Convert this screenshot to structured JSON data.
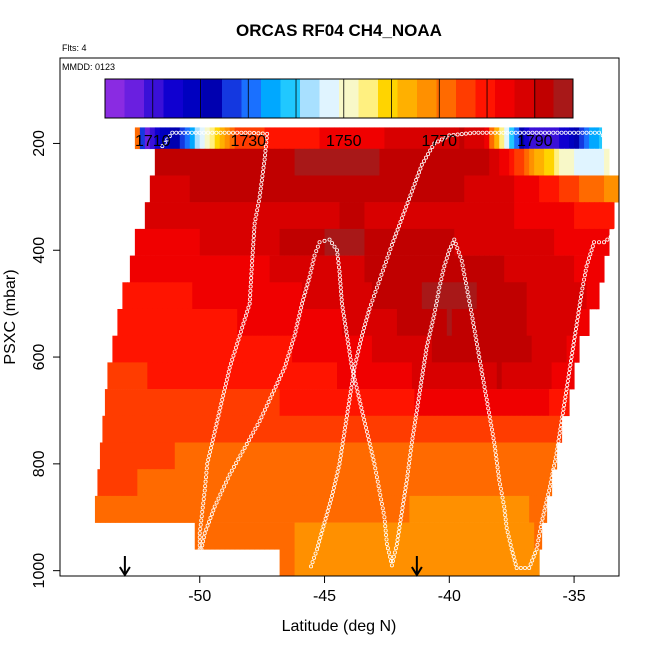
{
  "chart_data": {
    "type": "heatmap",
    "title": "ORCAS RF04 CH4_NOAA",
    "flts_label": "Flts: 4",
    "date_label": "MMDD: 0123",
    "xlabel": "Latitude (deg N)",
    "ylabel": "PSXC (mbar)",
    "xlim": [
      -55.6,
      -33.2
    ],
    "ylim": [
      1010,
      40
    ],
    "x_ticks": [
      -50,
      -45,
      -40,
      -35
    ],
    "x_tick_labels": [
      "-50",
      "-45",
      "-40",
      "-35"
    ],
    "y_ticks": [
      200,
      400,
      600,
      800,
      1000
    ],
    "y_tick_labels": [
      "200",
      "400",
      "600",
      "800",
      "1000"
    ],
    "colorbar": {
      "min": 1700,
      "max": 1798,
      "ticks": [
        1710,
        1730,
        1750,
        1770,
        1790
      ],
      "tick_labels": [
        "1710",
        "1730",
        "1750",
        "1770",
        "1790"
      ],
      "colors": [
        "#8a2be2",
        "#6a1fe0",
        "#3a10d8",
        "#1000d0",
        "#0000c0",
        "#0000b0",
        "#1438e0",
        "#1a70ff",
        "#00a8ff",
        "#20c8ff",
        "#a8e0ff",
        "#e0f4ff",
        "#f8f8c8",
        "#fff080",
        "#ffd400",
        "#ffb000",
        "#ff9000",
        "#ff6a00",
        "#ff3c00",
        "#ff1400",
        "#f00000",
        "#d80000",
        "#c00000",
        "#a81818"
      ]
    },
    "bands": [
      {
        "p": [
          170,
          210
        ],
        "x": [
          -52.6,
          -33.9
        ],
        "profile": "top"
      },
      {
        "p": [
          210,
          260
        ],
        "x": [
          -51.8,
          -33.6
        ],
        "profile": "band1"
      },
      {
        "p": [
          260,
          310
        ],
        "x": [
          -52.0,
          -33.2
        ],
        "profile": "band2"
      },
      {
        "p": [
          310,
          360
        ],
        "x": [
          -52.2,
          -33.4
        ],
        "profile": "band3"
      },
      {
        "p": [
          360,
          410
        ],
        "x": [
          -52.6,
          -33.6
        ],
        "profile": "band4"
      },
      {
        "p": [
          410,
          460
        ],
        "x": [
          -52.8,
          -33.8
        ],
        "profile": "band5"
      },
      {
        "p": [
          460,
          510
        ],
        "x": [
          -53.1,
          -34.0
        ],
        "profile": "band6"
      },
      {
        "p": [
          510,
          560
        ],
        "x": [
          -53.3,
          -34.4
        ],
        "profile": "band7"
      },
      {
        "p": [
          560,
          610
        ],
        "x": [
          -53.5,
          -34.8
        ],
        "profile": "band8"
      },
      {
        "p": [
          610,
          660
        ],
        "x": [
          -53.7,
          -35.0
        ],
        "profile": "band9"
      },
      {
        "p": [
          660,
          710
        ],
        "x": [
          -53.8,
          -35.2
        ],
        "profile": "band10"
      },
      {
        "p": [
          710,
          760
        ],
        "x": [
          -53.9,
          -35.5
        ],
        "profile": "band11"
      },
      {
        "p": [
          760,
          810
        ],
        "x": [
          -54.0,
          -35.7
        ],
        "profile": "band12"
      },
      {
        "p": [
          810,
          860
        ],
        "x": [
          -54.1,
          -35.9
        ],
        "profile": "band13"
      },
      {
        "p": [
          860,
          910
        ],
        "x": [
          -54.2,
          -36.1
        ],
        "profile": "band14"
      },
      {
        "p": [
          910,
          960
        ],
        "x": [
          -50.2,
          -36.3
        ],
        "profile": "band15"
      },
      {
        "p": [
          960,
          1010
        ],
        "x": [
          -46.8,
          -36.4
        ],
        "profile": "band16"
      }
    ],
    "profiles": {
      "top": [
        [
          -52.6,
          1794
        ],
        [
          -52.2,
          1702
        ],
        [
          -51.8,
          1712
        ],
        [
          -51.3,
          1720
        ],
        [
          -50.6,
          1727
        ],
        [
          -49.9,
          1747
        ],
        [
          -49.3,
          1760
        ],
        [
          -48.5,
          1776
        ],
        [
          -47.0,
          1778
        ],
        [
          -45.5,
          1781
        ],
        [
          -44.0,
          1784
        ],
        [
          -42.5,
          1786
        ],
        [
          -41.0,
          1788
        ],
        [
          -39.5,
          1790
        ],
        [
          -38.5,
          1785
        ],
        [
          -38.2,
          1765
        ],
        [
          -37.8,
          1752
        ],
        [
          -37.4,
          1735
        ],
        [
          -36.8,
          1712
        ],
        [
          -36.0,
          1708
        ],
        [
          -35.2,
          1715
        ],
        [
          -34.5,
          1730
        ],
        [
          -33.9,
          1738
        ]
      ],
      "band1": [
        [
          -51.8,
          1791
        ],
        [
          -49.0,
          1793
        ],
        [
          -46.0,
          1794
        ],
        [
          -43.0,
          1794
        ],
        [
          -40.0,
          1792
        ],
        [
          -38.5,
          1790
        ],
        [
          -37.5,
          1780
        ],
        [
          -36.5,
          1765
        ],
        [
          -35.5,
          1752
        ],
        [
          -34.5,
          1746
        ],
        [
          -33.6,
          1750
        ]
      ],
      "band2": [
        [
          -52.0,
          1789
        ],
        [
          -48.0,
          1791
        ],
        [
          -44.0,
          1793
        ],
        [
          -40.0,
          1791
        ],
        [
          -37.0,
          1785
        ],
        [
          -35.0,
          1775
        ],
        [
          -33.2,
          1766
        ]
      ],
      "band3": [
        [
          -52.2,
          1786
        ],
        [
          -48.0,
          1788
        ],
        [
          -44.0,
          1790
        ],
        [
          -40.0,
          1789
        ],
        [
          -36.0,
          1784
        ],
        [
          -33.4,
          1778
        ]
      ],
      "band4": [
        [
          -52.6,
          1784
        ],
        [
          -48.0,
          1787
        ],
        [
          -44.5,
          1795
        ],
        [
          -42.5,
          1793
        ],
        [
          -40.0,
          1790
        ],
        [
          -36.0,
          1786
        ],
        [
          -33.6,
          1782
        ]
      ],
      "band5": [
        [
          -52.8,
          1782
        ],
        [
          -48.0,
          1785
        ],
        [
          -44.0,
          1789
        ],
        [
          -41.0,
          1793
        ],
        [
          -39.0,
          1792
        ],
        [
          -36.0,
          1787
        ],
        [
          -33.8,
          1784
        ]
      ],
      "band6": [
        [
          -53.1,
          1780
        ],
        [
          -48.0,
          1783
        ],
        [
          -44.0,
          1788
        ],
        [
          -41.0,
          1794
        ],
        [
          -39.0,
          1794
        ],
        [
          -36.0,
          1788
        ],
        [
          -34.0,
          1785
        ]
      ],
      "band7": [
        [
          -53.3,
          1779
        ],
        [
          -48.0,
          1782
        ],
        [
          -44.0,
          1786
        ],
        [
          -40.0,
          1794
        ],
        [
          -38.0,
          1792
        ],
        [
          -36.0,
          1788
        ],
        [
          -34.4,
          1785
        ]
      ],
      "band8": [
        [
          -53.5,
          1778
        ],
        [
          -48.0,
          1780
        ],
        [
          -44.0,
          1784
        ],
        [
          -40.0,
          1791
        ],
        [
          -38.0,
          1793
        ],
        [
          -36.0,
          1788
        ],
        [
          -34.8,
          1784
        ]
      ],
      "band9": [
        [
          -53.7,
          1777
        ],
        [
          -48.0,
          1779
        ],
        [
          -44.0,
          1782
        ],
        [
          -40.0,
          1788
        ],
        [
          -38.0,
          1790
        ],
        [
          -36.0,
          1786
        ],
        [
          -35.0,
          1783
        ]
      ],
      "band10": [
        [
          -53.8,
          1776
        ],
        [
          -48.0,
          1777
        ],
        [
          -44.0,
          1779
        ],
        [
          -40.0,
          1783
        ],
        [
          -37.5,
          1785
        ],
        [
          -35.2,
          1780
        ]
      ],
      "band11": [
        [
          -53.9,
          1775
        ],
        [
          -48.0,
          1775
        ],
        [
          -44.0,
          1774
        ],
        [
          -40.0,
          1775
        ],
        [
          -37.0,
          1776
        ],
        [
          -35.5,
          1776
        ]
      ],
      "band12": [
        [
          -54.0,
          1774
        ],
        [
          -48.0,
          1773
        ],
        [
          -44.0,
          1772
        ],
        [
          -40.0,
          1772
        ],
        [
          -37.0,
          1771
        ],
        [
          -35.7,
          1773
        ]
      ],
      "band13": [
        [
          -54.1,
          1774
        ],
        [
          -48.0,
          1772
        ],
        [
          -44.0,
          1771
        ],
        [
          -40.0,
          1770
        ],
        [
          -37.0,
          1770
        ],
        [
          -35.9,
          1772
        ]
      ],
      "band14": [
        [
          -54.2,
          1773
        ],
        [
          -48.0,
          1772
        ],
        [
          -44.0,
          1770
        ],
        [
          -40.0,
          1769
        ],
        [
          -37.0,
          1769
        ],
        [
          -36.1,
          1771
        ]
      ],
      "band15": [
        [
          -50.2,
          1772
        ],
        [
          -47.0,
          1770
        ],
        [
          -44.0,
          1768
        ],
        [
          -40.0,
          1768
        ],
        [
          -37.0,
          1768
        ],
        [
          -36.3,
          1770
        ]
      ],
      "band16": [
        [
          -46.8,
          1770
        ],
        [
          -44.0,
          1767
        ],
        [
          -41.0,
          1766
        ],
        [
          -38.0,
          1767
        ],
        [
          -36.4,
          1769
        ]
      ]
    },
    "flight_track": [
      [
        -51.5,
        205
      ],
      [
        -51.1,
        180
      ],
      [
        -50.0,
        180
      ],
      [
        -49.0,
        180
      ],
      [
        -48.0,
        180
      ],
      [
        -47.3,
        182
      ],
      [
        -47.4,
        230
      ],
      [
        -47.6,
        300
      ],
      [
        -47.8,
        350
      ],
      [
        -47.9,
        420
      ],
      [
        -48.0,
        500
      ],
      [
        -48.4,
        560
      ],
      [
        -48.8,
        620
      ],
      [
        -49.1,
        680
      ],
      [
        -49.4,
        740
      ],
      [
        -49.7,
        800
      ],
      [
        -49.8,
        850
      ],
      [
        -49.9,
        890
      ],
      [
        -50.0,
        930
      ],
      [
        -50.0,
        960
      ],
      [
        -50.0,
        1000
      ],
      [
        -50.0,
        975
      ],
      [
        -49.8,
        930
      ],
      [
        -49.4,
        880
      ],
      [
        -48.8,
        820
      ],
      [
        -48.2,
        770
      ],
      [
        -47.6,
        720
      ],
      [
        -47.1,
        670
      ],
      [
        -46.6,
        620
      ],
      [
        -46.2,
        560
      ],
      [
        -45.9,
        500
      ],
      [
        -45.6,
        450
      ],
      [
        -45.4,
        410
      ],
      [
        -45.2,
        385
      ],
      [
        -44.8,
        380
      ],
      [
        -44.5,
        400
      ],
      [
        -44.4,
        440
      ],
      [
        -44.3,
        500
      ],
      [
        -44.1,
        560
      ],
      [
        -43.9,
        620
      ],
      [
        -43.6,
        680
      ],
      [
        -43.3,
        740
      ],
      [
        -43.0,
        800
      ],
      [
        -42.8,
        850
      ],
      [
        -42.6,
        900
      ],
      [
        -42.5,
        950
      ],
      [
        -42.3,
        990
      ],
      [
        -42.1,
        950
      ],
      [
        -41.9,
        890
      ],
      [
        -41.7,
        830
      ],
      [
        -41.5,
        760
      ],
      [
        -41.3,
        700
      ],
      [
        -41.1,
        640
      ],
      [
        -40.9,
        580
      ],
      [
        -40.6,
        520
      ],
      [
        -40.4,
        470
      ],
      [
        -40.2,
        430
      ],
      [
        -40.0,
        400
      ],
      [
        -39.8,
        380
      ],
      [
        -39.5,
        420
      ],
      [
        -39.3,
        470
      ],
      [
        -39.1,
        520
      ],
      [
        -38.8,
        600
      ],
      [
        -38.5,
        680
      ],
      [
        -38.2,
        760
      ],
      [
        -38.0,
        830
      ],
      [
        -37.8,
        880
      ],
      [
        -37.7,
        920
      ],
      [
        -37.5,
        960
      ],
      [
        -37.3,
        995
      ],
      [
        -36.8,
        995
      ],
      [
        -36.5,
        960
      ],
      [
        -36.3,
        910
      ],
      [
        -36.0,
        850
      ],
      [
        -35.7,
        780
      ],
      [
        -35.5,
        720
      ],
      [
        -35.3,
        660
      ],
      [
        -35.1,
        600
      ],
      [
        -34.9,
        540
      ],
      [
        -34.7,
        480
      ],
      [
        -34.5,
        430
      ],
      [
        -34.2,
        385
      ],
      [
        -33.8,
        385
      ],
      [
        -33.4,
        370
      ],
      [
        -33.0,
        320
      ],
      [
        -32.6,
        270
      ],
      [
        -32.4,
        230
      ],
      [
        -32.6,
        205
      ],
      [
        -33.4,
        200
      ],
      [
        -34.0,
        180
      ],
      [
        -35.0,
        180
      ],
      [
        -36.0,
        180
      ],
      [
        -37.0,
        180
      ],
      [
        -38.0,
        180
      ],
      [
        -39.0,
        180
      ],
      [
        -40.0,
        185
      ],
      [
        -40.6,
        200
      ],
      [
        -41.1,
        240
      ],
      [
        -41.5,
        290
      ],
      [
        -41.9,
        340
      ],
      [
        -42.3,
        390
      ],
      [
        -42.6,
        430
      ],
      [
        -42.9,
        470
      ],
      [
        -43.2,
        510
      ],
      [
        -43.5,
        560
      ],
      [
        -43.8,
        620
      ],
      [
        -44.0,
        680
      ],
      [
        -44.2,
        740
      ],
      [
        -44.4,
        800
      ],
      [
        -44.7,
        860
      ],
      [
        -45.0,
        910
      ],
      [
        -45.3,
        960
      ],
      [
        -45.6,
        1000
      ]
    ],
    "arrows_x": [
      -53.0,
      -41.3
    ]
  }
}
